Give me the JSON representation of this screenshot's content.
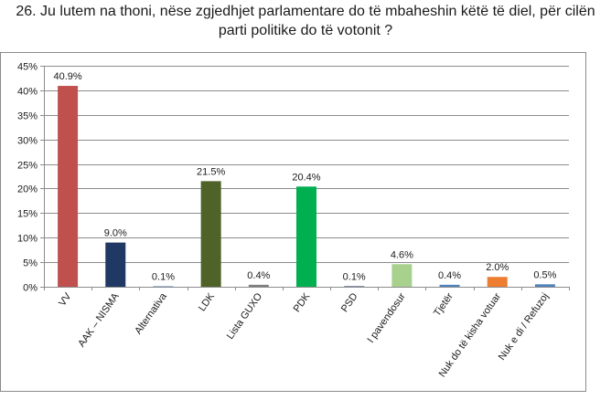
{
  "title_line1": "26. Ju lutem na thoni, nëse zgjedhjet parlamentare do të mbaheshin këtë të diel, për cilën",
  "title_line2": "parti politike do të votonit ?",
  "chart_data": {
    "type": "bar",
    "title": "26. Ju lutem na thoni, nëse zgjedhjet parlamentare do të mbaheshin këtë të diel, për cilën parti politike do të votonit ?",
    "xlabel": "",
    "ylabel": "",
    "ylim": [
      0,
      45
    ],
    "yticks": [
      "0%",
      "5%",
      "10%",
      "15%",
      "20%",
      "25%",
      "30%",
      "35%",
      "40%",
      "45%"
    ],
    "grid": true,
    "categories": [
      "VV",
      "AAK – NISMA",
      "Alternativa",
      "LDK",
      "Lista GUXO",
      "PDK",
      "PSD",
      "I pavendosur",
      "Tjetër",
      "Nuk do të kisha votuar",
      "Nuk e di / Refuzoj"
    ],
    "values": [
      40.9,
      9.0,
      0.1,
      21.5,
      0.4,
      20.4,
      0.1,
      4.6,
      0.4,
      2.0,
      0.5
    ],
    "data_labels": [
      "40.9%",
      "9.0%",
      "0.1%",
      "21.5%",
      "0.4%",
      "20.4%",
      "0.1%",
      "4.6%",
      "0.4%",
      "2.0%",
      "0.5%"
    ],
    "colors": [
      "#c0504d",
      "#1f3864",
      "#4f81bd",
      "#4f6228",
      "#7f7f7f",
      "#00b050",
      "#1f3864",
      "#a9d18e",
      "#4f81bd",
      "#ed7d31",
      "#4f81bd"
    ]
  }
}
